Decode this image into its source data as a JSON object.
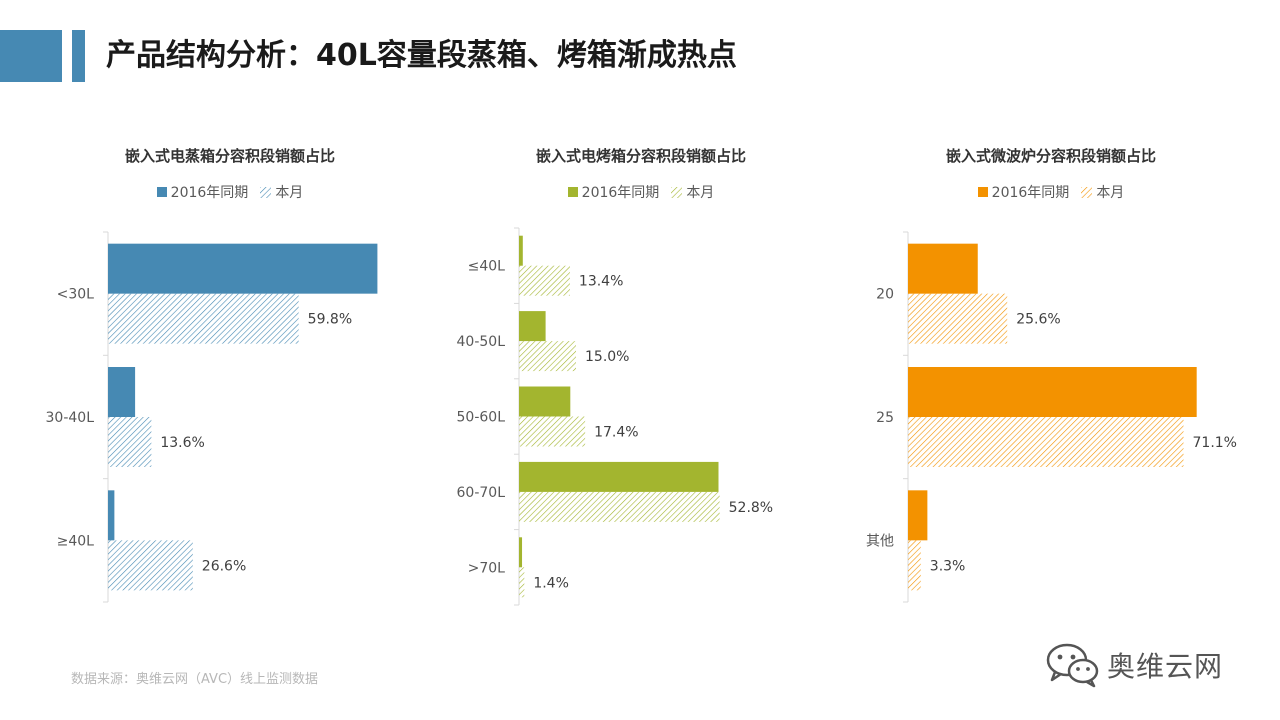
{
  "header": {
    "title": "产品结构分析：40L容量段蒸箱、烤箱渐成热点",
    "accent_color": "#4689b3"
  },
  "legend_labels": {
    "prior": "2016年同期",
    "current": "本月"
  },
  "footer": {
    "source": "数据来源：奥维云网（AVC）线上监测数据",
    "watermark": "奥维云网"
  },
  "chart_data": [
    {
      "type": "bar",
      "orientation": "horizontal",
      "title": "嵌入式电蒸箱分容积段销额占比",
      "color": "#4689b3",
      "categories": [
        "<30L",
        "30-40L",
        "≥40L"
      ],
      "series": [
        {
          "name": "2016年同期",
          "values": [
            84.5,
            8.5,
            2.0
          ],
          "labels": [
            "",
            "",
            ""
          ]
        },
        {
          "name": "本月",
          "values": [
            59.8,
            13.6,
            26.6
          ],
          "labels": [
            "59.8%",
            "13.6%",
            "26.6%"
          ]
        }
      ],
      "xlim": [
        0,
        85
      ]
    },
    {
      "type": "bar",
      "orientation": "horizontal",
      "title": "嵌入式电烤箱分容积段销额占比",
      "color": "#a3b52f",
      "categories": [
        "≤40L",
        "40-50L",
        "50-60L",
        "60-70L",
        ">70L"
      ],
      "series": [
        {
          "name": "2016年同期",
          "values": [
            1.0,
            7.0,
            13.5,
            52.5,
            0.8
          ],
          "labels": [
            "",
            "",
            "",
            "",
            ""
          ]
        },
        {
          "name": "本月",
          "values": [
            13.4,
            15.0,
            17.4,
            52.8,
            1.4
          ],
          "labels": [
            "13.4%",
            "15.0%",
            "17.4%",
            "52.8%",
            "1.4%"
          ]
        }
      ],
      "xlim": [
        0,
        70
      ]
    },
    {
      "type": "bar",
      "orientation": "horizontal",
      "title": "嵌入式微波炉分容积段销额占比",
      "color": "#f39200",
      "categories": [
        "20",
        "25",
        "其他"
      ],
      "series": [
        {
          "name": "2016年同期",
          "values": [
            18.0,
            74.5,
            5.0
          ],
          "labels": [
            "",
            "",
            ""
          ]
        },
        {
          "name": "本月",
          "values": [
            25.6,
            71.1,
            3.3
          ],
          "labels": [
            "25.6%",
            "71.1%",
            "3.3%"
          ]
        }
      ],
      "xlim": [
        0,
        80
      ]
    }
  ]
}
